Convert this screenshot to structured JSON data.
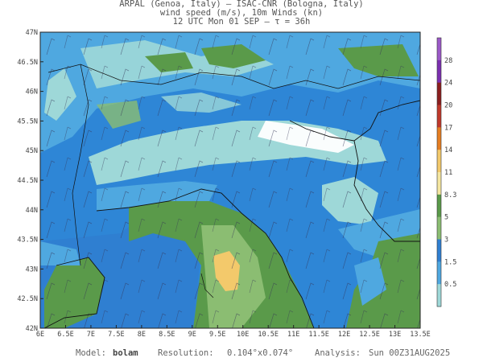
{
  "header": {
    "line1": "ARPAL (Genoa, Italy)  —  ISAC-CNR (Bologna, Italy)",
    "line2": "wind speed (m/s), 10m Winds (kn)",
    "line3": "12 UTC Mon 01 SEP  —  τ = 36h"
  },
  "map": {
    "lat_labels": [
      "47N",
      "46.5N",
      "46N",
      "45.5N",
      "45N",
      "44.5N",
      "44N",
      "43.5N",
      "43N",
      "42.5N",
      "42N"
    ],
    "lon_labels": [
      "6E",
      "6.5E",
      "7E",
      "7.5E",
      "8E",
      "8.5E",
      "9E",
      "9.5E",
      "10E",
      "10.5E",
      "11E",
      "11.5E",
      "12E",
      "12.5E",
      "13E",
      "13.5E"
    ],
    "lat_range": [
      42,
      47
    ],
    "lon_range": [
      6,
      13.5
    ]
  },
  "colorbar": {
    "levels": [
      "28",
      "24",
      "20",
      "17",
      "14",
      "11",
      "8.3",
      "5",
      "3",
      "1.5",
      "0.5"
    ],
    "colors": [
      "#9b59c8",
      "#7b2fb0",
      "#8b1e1e",
      "#c0392b",
      "#e67e22",
      "#f3c96b",
      "#f5e6a0",
      "#5a9a4a",
      "#8bbd72",
      "#2f7fd1",
      "#4fa8e0",
      "#9ed8d8"
    ]
  },
  "footer": {
    "model_label": "Model:",
    "model_value": "bolam",
    "resolution_label": "Resolution:",
    "resolution_value": "0.104°x0.074°",
    "analysis_label": "Analysis:",
    "analysis_value": "Sun 00Z31AUG2025"
  }
}
